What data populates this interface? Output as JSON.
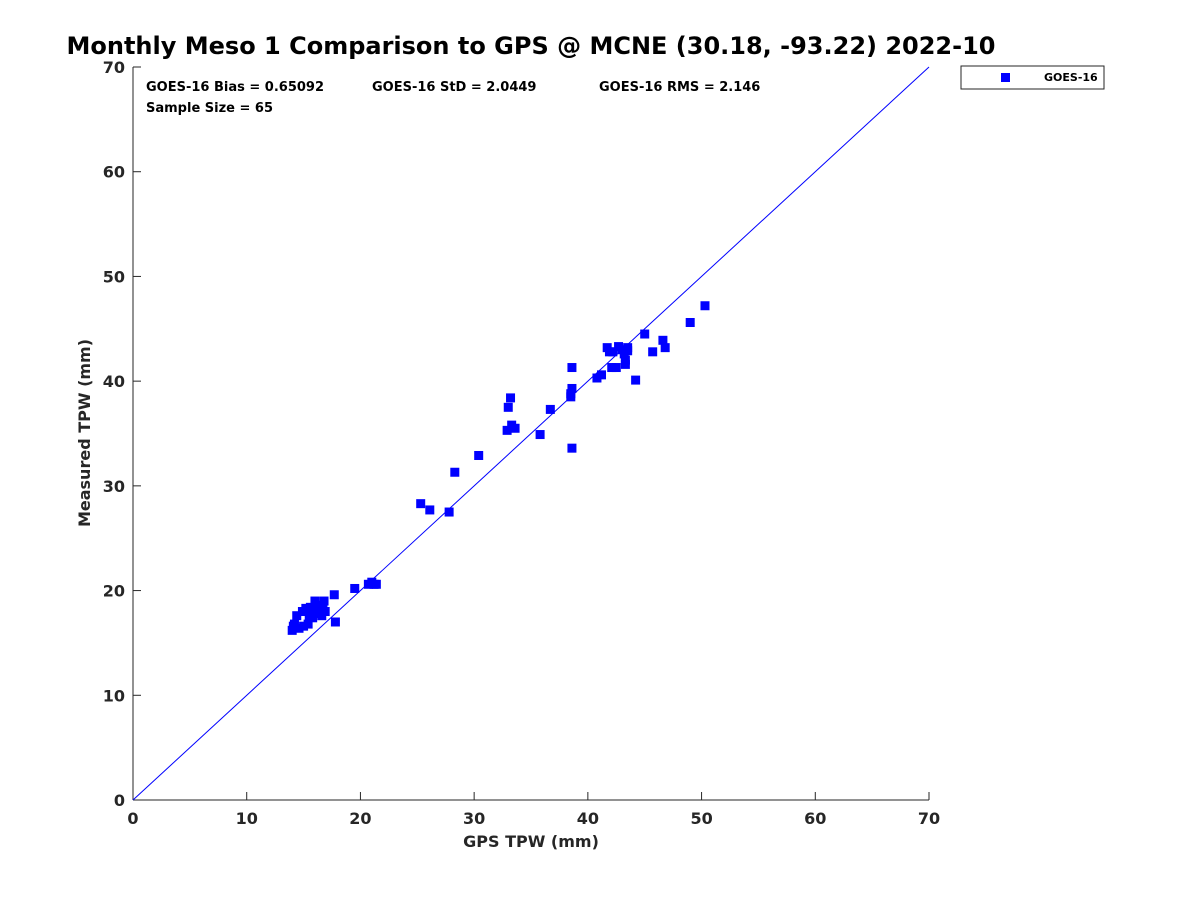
{
  "chart_data": {
    "type": "scatter",
    "title": "Monthly Meso 1 Comparison to GPS @ MCNE (30.18, -93.22) 2022-10",
    "xlabel": "GPS TPW (mm)",
    "ylabel": "Measured TPW (mm)",
    "xlim": [
      0,
      70
    ],
    "ylim": [
      0,
      70
    ],
    "xticks": [
      0,
      10,
      20,
      30,
      40,
      50,
      60,
      70
    ],
    "yticks": [
      0,
      10,
      20,
      30,
      40,
      50,
      60,
      70
    ],
    "grid": false,
    "legend_position": "outside-top-right",
    "reference_line": {
      "x": [
        0,
        70
      ],
      "y": [
        0,
        70
      ],
      "color": "#0000ff"
    },
    "stats": {
      "bias": "GOES-16 Bias = 0.65092",
      "std": "GOES-16 StD = 2.0449",
      "rms": "GOES-16 RMS = 2.146",
      "sample": "Sample Size = 65"
    },
    "series": [
      {
        "name": "GOES-16",
        "color": "#0000ff",
        "marker": "square",
        "points": [
          [
            14.0,
            16.2
          ],
          [
            14.1,
            16.6
          ],
          [
            14.2,
            16.8
          ],
          [
            14.4,
            17.6
          ],
          [
            14.6,
            16.4
          ],
          [
            14.9,
            18.0
          ],
          [
            15.0,
            16.6
          ],
          [
            15.2,
            18.3
          ],
          [
            15.4,
            16.8
          ],
          [
            15.5,
            17.6
          ],
          [
            15.6,
            18.4
          ],
          [
            15.8,
            17.4
          ],
          [
            15.9,
            18.2
          ],
          [
            16.0,
            19.0
          ],
          [
            16.1,
            17.8
          ],
          [
            16.2,
            18.6
          ],
          [
            16.6,
            17.6
          ],
          [
            16.7,
            18.4
          ],
          [
            16.8,
            19.0
          ],
          [
            16.9,
            18.0
          ],
          [
            17.7,
            19.6
          ],
          [
            17.8,
            17.0
          ],
          [
            19.5,
            20.2
          ],
          [
            20.7,
            20.6
          ],
          [
            21.0,
            20.8
          ],
          [
            21.2,
            20.6
          ],
          [
            21.4,
            20.6
          ],
          [
            25.3,
            28.3
          ],
          [
            26.1,
            27.7
          ],
          [
            27.8,
            27.5
          ],
          [
            28.3,
            31.3
          ],
          [
            30.4,
            32.9
          ],
          [
            32.9,
            35.3
          ],
          [
            33.0,
            37.5
          ],
          [
            33.2,
            38.4
          ],
          [
            33.3,
            35.8
          ],
          [
            33.6,
            35.5
          ],
          [
            35.8,
            34.9
          ],
          [
            36.7,
            37.3
          ],
          [
            38.5,
            38.5
          ],
          [
            38.5,
            38.8
          ],
          [
            38.6,
            39.3
          ],
          [
            38.6,
            41.3
          ],
          [
            38.6,
            33.6
          ],
          [
            40.8,
            40.3
          ],
          [
            41.2,
            40.6
          ],
          [
            41.7,
            43.2
          ],
          [
            41.9,
            42.8
          ],
          [
            42.1,
            41.3
          ],
          [
            42.2,
            42.8
          ],
          [
            42.5,
            41.3
          ],
          [
            42.7,
            43.3
          ],
          [
            43.0,
            43.0
          ],
          [
            43.2,
            42.6
          ],
          [
            43.3,
            42.0
          ],
          [
            43.3,
            41.6
          ],
          [
            43.5,
            43.2
          ],
          [
            44.2,
            40.1
          ],
          [
            45.0,
            44.5
          ],
          [
            45.7,
            42.8
          ],
          [
            46.6,
            43.9
          ],
          [
            46.8,
            43.2
          ],
          [
            49.0,
            45.6
          ],
          [
            50.3,
            47.2
          ],
          [
            43.5,
            42.9
          ]
        ]
      }
    ]
  }
}
